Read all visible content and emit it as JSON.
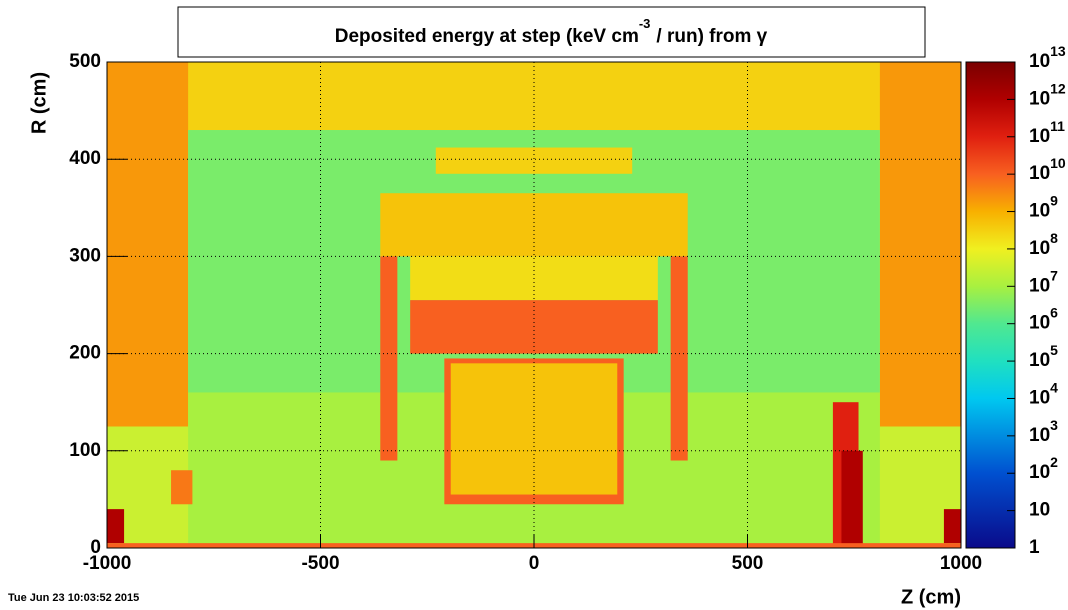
{
  "chart_data": {
    "type": "heatmap",
    "title": [
      "Deposited energy at step (keV cm",
      "-3",
      "/ run)  from  γ"
    ],
    "x_label": "Z (cm)",
    "y_label": "R (cm)",
    "timestamp": "Tue Jun 23 10:03:52 2015",
    "xlim": [
      -1000,
      1000
    ],
    "ylim": [
      0,
      500
    ],
    "xticks": [
      -1000,
      -500,
      0,
      500,
      1000
    ],
    "yticks": [
      0,
      100,
      200,
      300,
      400,
      500
    ],
    "grid": true,
    "zlog": true,
    "zlim": [
      1,
      10000000000000
    ],
    "zticks": [
      {
        "value": 1,
        "label": "1"
      },
      {
        "value": 10,
        "label": "10"
      },
      {
        "value": 100,
        "label": "10",
        "exponent": "2"
      },
      {
        "value": 1000,
        "label": "10",
        "exponent": "3"
      },
      {
        "value": 10000,
        "label": "10",
        "exponent": "4"
      },
      {
        "value": 100000,
        "label": "10",
        "exponent": "5"
      },
      {
        "value": 1000000,
        "label": "10",
        "exponent": "6"
      },
      {
        "value": 10000000,
        "label": "10",
        "exponent": "7"
      },
      {
        "value": 100000000,
        "label": "10",
        "exponent": "8"
      },
      {
        "value": 1000000000,
        "label": "10",
        "exponent": "9"
      },
      {
        "value": 10000000000,
        "label": "10",
        "exponent": "10"
      },
      {
        "value": 100000000000,
        "label": "10",
        "exponent": "11"
      },
      {
        "value": 1000000000000,
        "label": "10",
        "exponent": "12"
      },
      {
        "value": 10000000000000,
        "label": "10",
        "exponent": "13"
      }
    ],
    "colormap": [
      [
        1,
        "#0a0a8a"
      ],
      [
        100,
        "#0050d0"
      ],
      [
        10000,
        "#00c8f0"
      ],
      [
        100000,
        "#20e0c0"
      ],
      [
        1000000,
        "#50e890"
      ],
      [
        10000000,
        "#a8f040"
      ],
      [
        100000000,
        "#f0f020"
      ],
      [
        1000000000,
        "#f8b000"
      ],
      [
        10000000000,
        "#f86020"
      ],
      [
        100000000000,
        "#e02010"
      ],
      [
        1000000000000,
        "#b00000"
      ],
      [
        10000000000000,
        "#7a0000"
      ]
    ],
    "cells": [
      {
        "z": [
          -1000,
          1000
        ],
        "r": [
          0,
          500
        ],
        "value": 30000000
      },
      {
        "z": [
          -1000,
          1000
        ],
        "r": [
          430,
          500
        ],
        "value": 300000000
      },
      {
        "z": [
          -1000,
          -810
        ],
        "r": [
          125,
          500
        ],
        "value": 2000000000
      },
      {
        "z": [
          810,
          1000
        ],
        "r": [
          125,
          500
        ],
        "value": 2000000000
      },
      {
        "z": [
          -810,
          810
        ],
        "r": [
          160,
          430
        ],
        "value": 3000000
      },
      {
        "z": [
          -810,
          810
        ],
        "r": [
          0,
          160
        ],
        "value": 10000000
      },
      {
        "z": [
          -230,
          230
        ],
        "r": [
          385,
          412
        ],
        "value": 300000000
      },
      {
        "z": [
          -360,
          360
        ],
        "r": [
          300,
          365
        ],
        "value": 500000000
      },
      {
        "z": [
          -290,
          290
        ],
        "r": [
          255,
          300
        ],
        "value": 200000000
      },
      {
        "z": [
          -290,
          290
        ],
        "r": [
          200,
          255
        ],
        "value": 10000000000
      },
      {
        "z": [
          -360,
          -320
        ],
        "r": [
          90,
          300
        ],
        "value": 10000000000
      },
      {
        "z": [
          320,
          360
        ],
        "r": [
          90,
          300
        ],
        "value": 10000000000
      },
      {
        "z": [
          -210,
          210
        ],
        "r": [
          45,
          195
        ],
        "value": 10000000000
      },
      {
        "z": [
          -195,
          195
        ],
        "r": [
          55,
          190
        ],
        "value": 500000000
      },
      {
        "z": [
          -850,
          -800
        ],
        "r": [
          45,
          80
        ],
        "value": 5000000000
      },
      {
        "z": [
          700,
          760
        ],
        "r": [
          0,
          150
        ],
        "value": 100000000000
      },
      {
        "z": [
          720,
          770
        ],
        "r": [
          0,
          100
        ],
        "value": 1000000000000
      },
      {
        "z": [
          -1000,
          -960
        ],
        "r": [
          5,
          40
        ],
        "value": 1000000000000
      },
      {
        "z": [
          960,
          1000
        ],
        "r": [
          5,
          40
        ],
        "value": 1000000000000
      },
      {
        "z": [
          -1000,
          1000
        ],
        "r": [
          0,
          5
        ],
        "value": 10000000000
      }
    ]
  }
}
